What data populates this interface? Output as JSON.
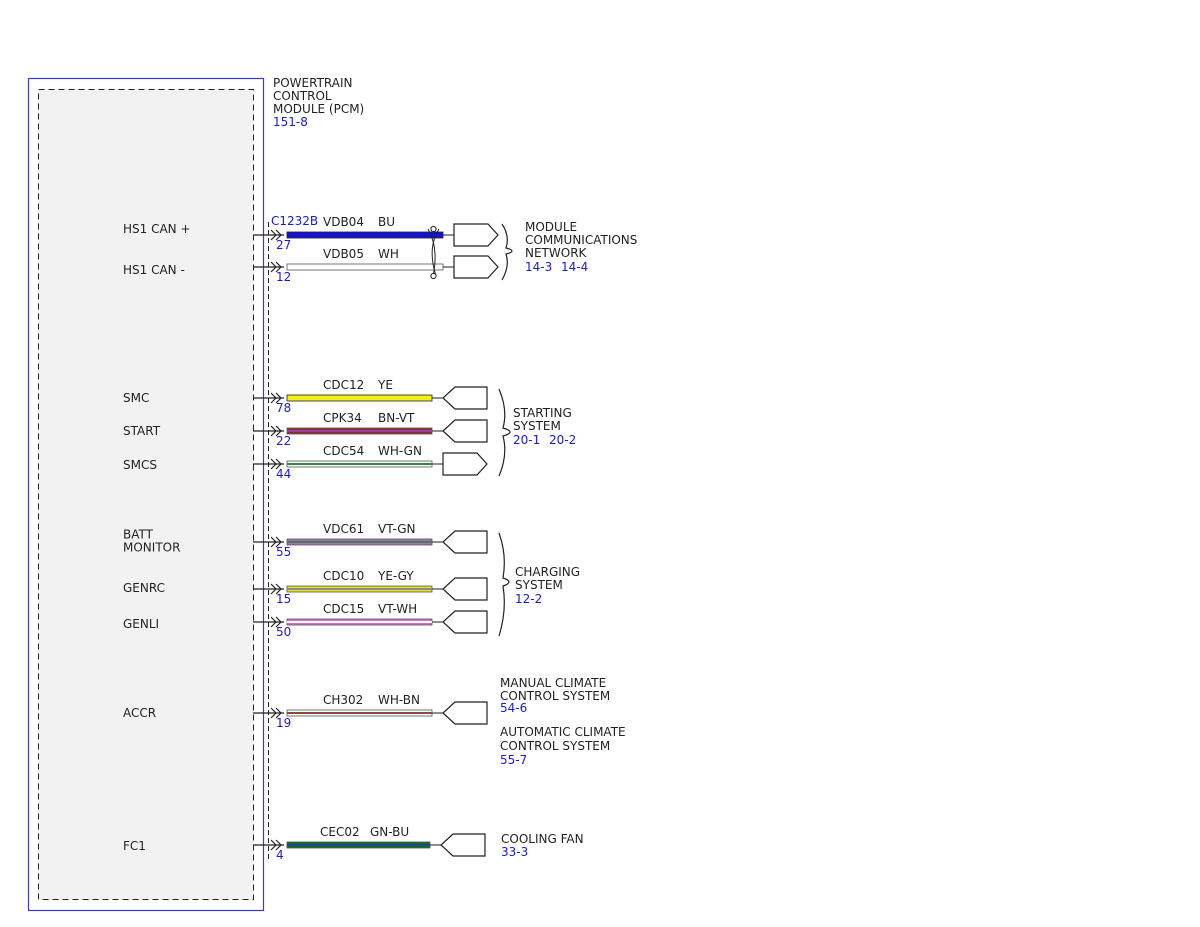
{
  "module": {
    "name_lines": [
      "POWERTRAIN",
      "CONTROL",
      "MODULE (PCM)"
    ],
    "ref": "151-8",
    "connector": "C1232B"
  },
  "pins": [
    {
      "label_lines": [
        "HS1 CAN +"
      ],
      "pin": "27",
      "circuit": "VDB04",
      "color_code": "BU",
      "colors": [
        "#1414d2"
      ]
    },
    {
      "label_lines": [
        "HS1 CAN -"
      ],
      "pin": "12",
      "circuit": "VDB05",
      "color_code": "WH",
      "colors": [
        "#ffffff"
      ]
    },
    {
      "label_lines": [
        "SMC"
      ],
      "pin": "78",
      "circuit": "CDC12",
      "color_code": "YE",
      "colors": [
        "#f2ee1a"
      ]
    },
    {
      "label_lines": [
        "START"
      ],
      "pin": "22",
      "circuit": "CPK34",
      "color_code": "BN-VT",
      "colors": [
        "#8a2f2f",
        "#9b3f9b"
      ]
    },
    {
      "label_lines": [
        "SMCS"
      ],
      "pin": "44",
      "circuit": "CDC54",
      "color_code": "WH-GN",
      "colors": [
        "#ffffff",
        "#2e8b3e"
      ]
    },
    {
      "label_lines": [
        "BATT",
        "MONITOR"
      ],
      "pin": "55",
      "circuit": "VDC61",
      "color_code": "VT-GN",
      "colors": [
        "#b566c6",
        "#2e8b3e"
      ]
    },
    {
      "label_lines": [
        "GENRC"
      ],
      "pin": "15",
      "circuit": "CDC10",
      "color_code": "YE-GY",
      "colors": [
        "#e6e21a",
        "#8c8c8c"
      ]
    },
    {
      "label_lines": [
        "GENLI"
      ],
      "pin": "50",
      "circuit": "CDC15",
      "color_code": "VT-WH",
      "colors": [
        "#d070d0",
        "#ffffff"
      ]
    },
    {
      "label_lines": [
        "ACCR"
      ],
      "pin": "19",
      "circuit": "CH302",
      "color_code": "WH-BN",
      "colors": [
        "#ffffff",
        "#8a4a3a"
      ]
    },
    {
      "label_lines": [
        "FC1"
      ],
      "pin": "4",
      "circuit": "CEC02",
      "color_code": "GN-BU",
      "colors": [
        "#0e6b2a",
        "#1a4a8a"
      ]
    }
  ],
  "destinations": [
    {
      "name_lines": [
        "MODULE",
        "COMMUNICATIONS",
        "NETWORK"
      ],
      "refs": [
        "14-3",
        "14-4"
      ]
    },
    {
      "name_lines": [
        "STARTING",
        "SYSTEM"
      ],
      "refs": [
        "20-1",
        "20-2"
      ]
    },
    {
      "name_lines": [
        "CHARGING",
        "SYSTEM"
      ],
      "refs": [
        "12-2"
      ]
    },
    {
      "name_lines": [
        "MANUAL CLIMATE",
        "CONTROL SYSTEM"
      ],
      "refs": [
        "54-6"
      ]
    },
    {
      "name_lines": [
        "AUTOMATIC CLIMATE",
        "CONTROL SYSTEM"
      ],
      "refs": [
        "55-7"
      ]
    },
    {
      "name_lines": [
        "COOLING FAN"
      ],
      "refs": [
        "33-3"
      ]
    }
  ],
  "colors": {
    "module_outline": "#3a3ad6",
    "module_fill": "#f2f2f2",
    "reference_text": "#1a1ad8",
    "line": "#222222"
  }
}
